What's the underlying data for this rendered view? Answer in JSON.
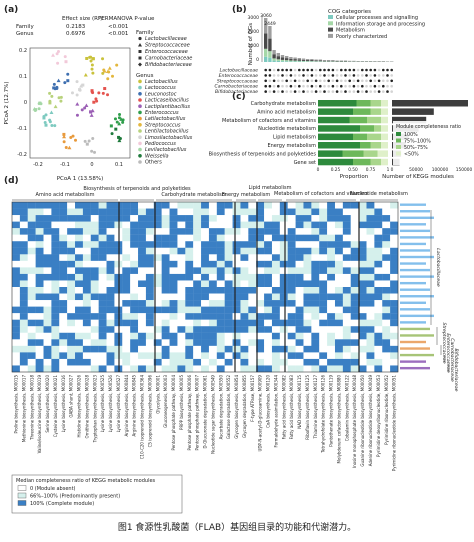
{
  "panels": {
    "a": {
      "label": "(a)",
      "stats_header": [
        "",
        "Effect size (R²)",
        "PERMANOVA P-value"
      ],
      "stats_rows": [
        [
          "Family",
          "0.2183",
          "<0.001"
        ],
        [
          "Genus",
          "0.6976",
          "<0.001"
        ]
      ],
      "xlabel": "PCoA 1 (13.58%)",
      "ylabel": "PCoA 2 (12.7%)",
      "xticks": [
        "-0.2",
        "-0.1",
        "0",
        "0.1"
      ],
      "yticks": [
        "0.2",
        "0.1",
        "0",
        "-0.1",
        "-0.2"
      ],
      "legend_family_title": "Family",
      "legend_family": [
        "Lactobacillaceae",
        "Streptococcaceae",
        "Enterococcaceae",
        "Carnobacteriaceae",
        "Bifidobacteriaceae"
      ],
      "legend_genus_title": "Genus",
      "legend_genus": [
        {
          "name": "Lactobacillus",
          "color": "#c9c23c"
        },
        {
          "name": "Lactococcus",
          "color": "#7ecac0"
        },
        {
          "name": "Leuconostoc",
          "color": "#3e6fb0"
        },
        {
          "name": "Lacticaseibacillus",
          "color": "#e4534e"
        },
        {
          "name": "Lactiplantibacillus",
          "color": "#9b5fb5"
        },
        {
          "name": "Enterococcus",
          "color": "#2f9e4b"
        },
        {
          "name": "Latilactobacillus",
          "color": "#e89a3c"
        },
        {
          "name": "Streptococcus",
          "color": "#e3b73d"
        },
        {
          "name": "Lentilactobacillus",
          "color": "#b8d27c"
        },
        {
          "name": "Limosilactobacillus",
          "color": "#d6d6d6"
        },
        {
          "name": "Pediococcus",
          "color": "#f2c9d9"
        },
        {
          "name": "Levilactobacillus",
          "color": "#a5d7a7"
        },
        {
          "name": "Weissella",
          "color": "#1f7a3c"
        },
        {
          "name": "Others",
          "color": "#bbbbbb"
        }
      ]
    },
    "b": {
      "label": "(b)",
      "ylabel": "Number of OGs",
      "yticks": [
        "3000",
        "2000",
        "1000",
        "0"
      ],
      "top_values": [
        "3060",
        "2449"
      ],
      "legend_title": "COG categories",
      "legend": [
        {
          "name": "Cellular processes and signalling",
          "color": "#7ecac0"
        },
        {
          "name": "Information storage and processing",
          "color": "#a5d7a7"
        },
        {
          "name": "Metabolism",
          "color": "#4a4a4a"
        },
        {
          "name": "Poorly characterized",
          "color": "#9e9e9e"
        }
      ],
      "set_labels": [
        "Lactobacillaceae",
        "Enterococcaceae",
        "Streptococcaceae",
        "Carnobacteriaceae",
        "Bifidobacteriaceae"
      ]
    },
    "c": {
      "label": "(c)",
      "categories": [
        "Carbohydrate metabolism",
        "Amino acid metabolism",
        "Metabolism of cofactors and vitamins",
        "Nucleotide metabolism",
        "Lipid metabolism",
        "Energy metabolism",
        "Biosynthesis of terpenoids and polyketides",
        "Gene set"
      ],
      "xlabel_left": "Proportion",
      "xlabel_right": "Number of KEGG modules",
      "xticks_left": [
        "0",
        "0.25",
        "0.50",
        "0.75",
        "1"
      ],
      "xticks_right": [
        "0",
        "50000",
        "100000",
        "150000"
      ],
      "legend_title": "Module completeness ratio",
      "legend": [
        {
          "name": "100%",
          "color": "#2d8a3c"
        },
        {
          "name": "75%–100%",
          "color": "#6db85b"
        },
        {
          "name": "50%–75%",
          "color": "#a9d68c"
        },
        {
          "name": "<50%",
          "color": "#dff0c9"
        }
      ]
    },
    "d": {
      "label": "(d)",
      "group_titles": [
        "Amino acid metabolism",
        "Biosynthesis of terpenoids and polyketides",
        "Carbohydrate metabolism",
        "Energy metabolism",
        "Lipid metabolism",
        "Metabolism of cofactors and vitamins",
        "Nucleotide metabolism"
      ],
      "families": [
        "Lactobacillaceae",
        "Streptococcaceae",
        "Enterococcaceae",
        "Carnobacteriaceae",
        "Bifidobacteriaceae"
      ],
      "legend_title": "Median completeness ratio of KEGG metabolic modules",
      "legend": [
        {
          "name": "0 (Module absent)",
          "color": "#ffffff"
        },
        {
          "name": "66%–100% (Predominantly present)",
          "color": "#d5f0ec"
        },
        {
          "name": "100% (Complete module)",
          "color": "#3a7fc4"
        }
      ],
      "column_labels": [
        "Proline biosynthesis, M00015",
        "Methionine biosynthesis, M00017",
        "Threonine biosynthesis, M00018",
        "Valine/isoleucine biosynthesis, M00019",
        "Serine biosynthesis, M00020",
        "Cysteine biosynthesis, M00021",
        "Lysine biosynthesis, M00016",
        "GABA shunt, M00027",
        "Histidine biosynthesis, M00026",
        "Ornithine biosynthesis, M00028",
        "Tryptophan biosynthesis, M00023",
        "Lysine biosynthesis, M00525",
        "Lysine biosynthesis, M00526",
        "Lysine biosynthesis, M00527",
        "Arginine biosynthesis, M00844",
        "Arginine biosynthesis, M00845",
        "C10-C20 isoprenoid biosynthesis, M00364",
        "C5 isoprenoid biosynthesis, M00096",
        "Glycolysis, M00001",
        "Gluconeogenesis, M00003",
        "Pentose phosphate pathway, M00004",
        "PRPP biosynthesis, M00005",
        "Pentose phosphate pathway, M00006",
        "Pentose phosphate pathway, M00007",
        "D-Glucuronate degradation, M00061",
        "Nucleotide sugar biosynthesis, M00549",
        "Ascorbate degradation, M00550",
        "Galactose degradation, M00552",
        "Glycogen biosynthesis, M00854",
        "Glycogen degradation, M00855",
        "F-type ATPase, M00157",
        "UDP-N-acetyl-D-glucosamine, M00909",
        "CoA biosynthesis, M00120",
        "Formaldehyde assimilation, M00344",
        "Fatty acid biosynthesis, M00082",
        "Fatty acid biosynthesis, M00083",
        "NAD biosynthesis, M00115",
        "Riboflavin biosynthesis, M00125",
        "Thiamine biosynthesis, M00127",
        "Tetrahydrofolate biosynthesis, M00126",
        "Pantothenate biosynthesis, M00119",
        "Molybdenum cofactor biosynthesis, M00880",
        "Cobalamin biosynthesis, M00122",
        "Inosine monophosphate biosynthesis, M00048",
        "Guanine ribonucleotide biosynthesis, M00050",
        "Adenine ribonucleotide biosynthesis, M00049",
        "Pyrimidine deoxyribonucleotide, M00053",
        "Pyrimidine ribonucleotide, M00052",
        "Pyrimidine ribonucleotide biosynthesis, M00051"
      ]
    }
  },
  "caption": "图1 食源性乳酸菌（FLAB）基因组目录的功能和代谢潜力。"
}
